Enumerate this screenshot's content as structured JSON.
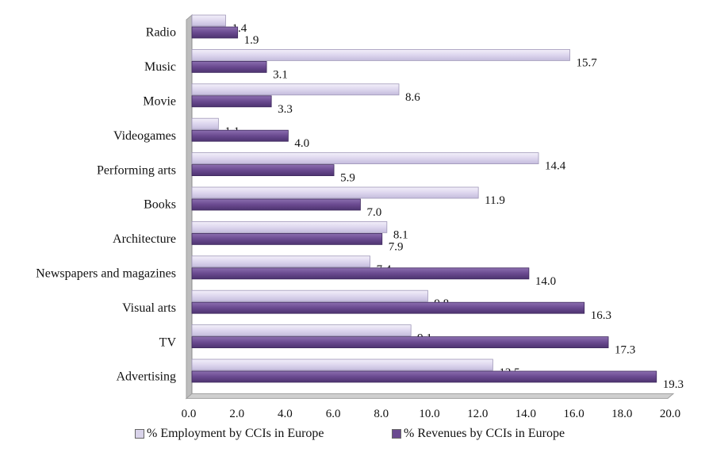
{
  "chart_data": {
    "type": "bar",
    "orientation": "horizontal",
    "categories": [
      "Radio",
      "Music",
      "Movie",
      "Videogames",
      "Performing arts",
      "Books",
      "Architecture",
      "Newspapers and magazines",
      "Visual arts",
      "TV",
      "Advertising"
    ],
    "series": [
      {
        "name": "% Employment by CCIs in Europe",
        "values": [
          1.4,
          15.7,
          8.6,
          1.1,
          14.4,
          11.9,
          8.1,
          7.4,
          9.8,
          9.1,
          12.5
        ],
        "labels": [
          "1.4",
          "15.7",
          "8.6",
          "1.1",
          "14.4",
          "11.9",
          "8.1",
          "7.4",
          "9.8",
          "9.1",
          "12.5"
        ],
        "color": "#d9d3ea"
      },
      {
        "name": "% Revenues by CCIs in Europe",
        "values": [
          1.9,
          3.1,
          3.3,
          4.0,
          5.9,
          7.0,
          7.9,
          14.0,
          16.3,
          17.3,
          19.3
        ],
        "labels": [
          "1.9",
          "3.1",
          "3.3",
          "4.0",
          "5.9",
          "7.0",
          "7.9",
          "14.0",
          "16.3",
          "17.3",
          "19.3"
        ],
        "color": "#6a4a90"
      }
    ],
    "xlim": [
      0,
      20
    ],
    "xticks": [
      "0.0",
      "2.0",
      "4.0",
      "6.0",
      "8.0",
      "10.0",
      "12.0",
      "14.0",
      "16.0",
      "18.0",
      "20.0"
    ],
    "grid": false,
    "legend_position": "bottom",
    "title": "",
    "xlabel": "",
    "ylabel": ""
  }
}
